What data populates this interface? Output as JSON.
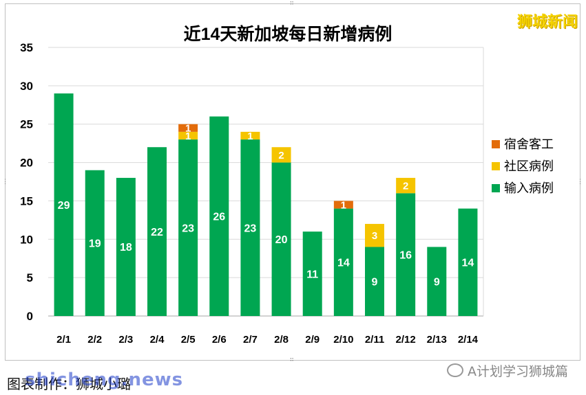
{
  "brand": "狮城新闻",
  "footer": {
    "credit": "图表制作：狮城小璐",
    "watermark": "shicheng.news",
    "account": "A计划学习狮城篇"
  },
  "icons": {
    "account_icon": "wechat-icon"
  },
  "colors": {
    "import": "#00a651",
    "community": "#f5c400",
    "dorm": "#e36c0a",
    "bar_label": "#ffffff",
    "grid": "#d9d9d9"
  },
  "chart_data": {
    "type": "bar",
    "stacked": true,
    "title": "近14天新加坡每日新增病例",
    "xlabel": "",
    "ylabel": "",
    "ylim": [
      0,
      35
    ],
    "yticks": [
      0,
      5,
      10,
      15,
      20,
      25,
      30,
      35
    ],
    "grid": true,
    "legend_position": "right",
    "categories": [
      "2/1",
      "2/2",
      "2/3",
      "2/4",
      "2/5",
      "2/6",
      "2/7",
      "2/8",
      "2/9",
      "2/10",
      "2/11",
      "2/12",
      "2/13",
      "2/14"
    ],
    "series": [
      {
        "name": "输入病例",
        "values": [
          29,
          19,
          18,
          22,
          23,
          26,
          23,
          20,
          11,
          14,
          9,
          16,
          9,
          14
        ]
      },
      {
        "name": "社区病例",
        "values": [
          0,
          0,
          0,
          0,
          1,
          0,
          1,
          2,
          0,
          0,
          3,
          2,
          0,
          0
        ]
      },
      {
        "name": "宿舍客工",
        "values": [
          0,
          0,
          0,
          0,
          1,
          0,
          0,
          0,
          0,
          1,
          0,
          0,
          0,
          0
        ]
      }
    ]
  }
}
